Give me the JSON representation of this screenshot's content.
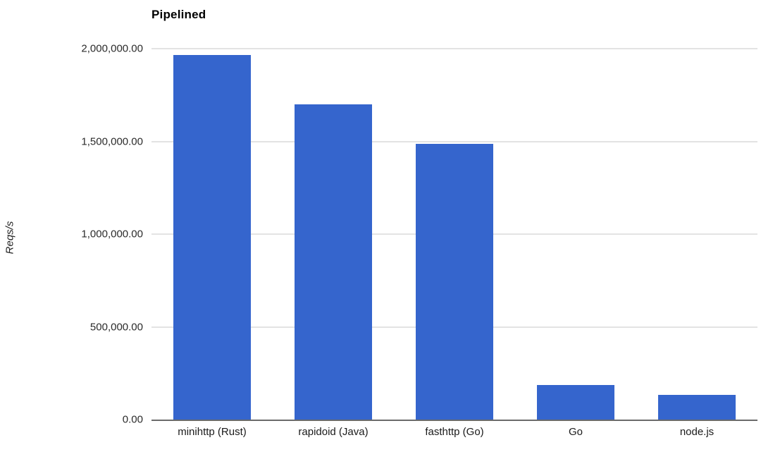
{
  "chart_data": {
    "type": "bar",
    "title": "Pipelined",
    "xlabel": "",
    "ylabel": "Reqs/s",
    "categories": [
      "minihttp (Rust)",
      "rapidoid (Java)",
      "fasthttp (Go)",
      "Go",
      "node.js"
    ],
    "values": [
      1965000,
      1700000,
      1487000,
      186000,
      133000
    ],
    "ylim": [
      0,
      2000000
    ],
    "yticks": [
      {
        "value": 0,
        "label": "0.00"
      },
      {
        "value": 500000,
        "label": "500,000.00"
      },
      {
        "value": 1000000,
        "label": "1,000,000.00"
      },
      {
        "value": 1500000,
        "label": "1,500,000.00"
      },
      {
        "value": 2000000,
        "label": "2,000,000.00"
      }
    ],
    "grid": true,
    "legend": "none",
    "colors": {
      "bar": "#3565cd",
      "gridline": "#e3e3e3",
      "baseline": "#6b6b6b",
      "tick_text": "#2b2b2b",
      "title_text": "#000000"
    }
  }
}
